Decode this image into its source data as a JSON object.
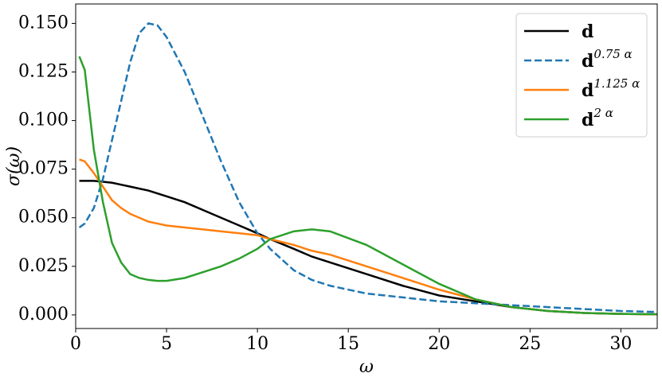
{
  "chart_data": {
    "type": "line",
    "xlabel": "ω",
    "ylabel": "σ(ω)",
    "x": [
      0.2,
      0.5,
      1,
      1.5,
      2,
      2.5,
      3,
      3.5,
      4,
      4.5,
      5,
      6,
      7,
      8,
      9,
      10,
      10.7,
      12,
      13,
      14,
      16,
      18,
      20,
      22,
      24,
      26,
      28,
      30,
      32
    ],
    "series": [
      {
        "name": "d",
        "color": "#000000",
        "dash": false,
        "values": [
          0.069,
          0.069,
          0.069,
          0.0685,
          0.068,
          0.067,
          0.066,
          0.065,
          0.064,
          0.0625,
          0.061,
          0.058,
          0.054,
          0.05,
          0.046,
          0.042,
          0.039,
          0.034,
          0.03,
          0.027,
          0.021,
          0.015,
          0.01,
          0.007,
          0.004,
          0.002,
          0.001,
          0.0005,
          0.0003
        ]
      },
      {
        "name": "d0.75 α",
        "color": "#1f77b4",
        "dash": true,
        "values": [
          0.045,
          0.047,
          0.055,
          0.07,
          0.09,
          0.11,
          0.13,
          0.145,
          0.15,
          0.149,
          0.143,
          0.125,
          0.102,
          0.079,
          0.058,
          0.042,
          0.034,
          0.023,
          0.018,
          0.015,
          0.011,
          0.009,
          0.007,
          0.006,
          0.005,
          0.004,
          0.003,
          0.002,
          0.0015
        ]
      },
      {
        "name": "d1.125 α",
        "color": "#ff7f0e",
        "dash": false,
        "values": [
          0.08,
          0.079,
          0.073,
          0.066,
          0.059,
          0.055,
          0.052,
          0.05,
          0.048,
          0.047,
          0.046,
          0.045,
          0.044,
          0.043,
          0.042,
          0.041,
          0.039,
          0.036,
          0.033,
          0.031,
          0.025,
          0.019,
          0.013,
          0.008,
          0.004,
          0.002,
          0.001,
          0.0005,
          0.0002
        ]
      },
      {
        "name": "d2 α",
        "color": "#2ca02c",
        "dash": false,
        "values": [
          0.133,
          0.126,
          0.085,
          0.058,
          0.037,
          0.027,
          0.021,
          0.019,
          0.018,
          0.0175,
          0.0175,
          0.019,
          0.022,
          0.025,
          0.029,
          0.034,
          0.039,
          0.043,
          0.044,
          0.043,
          0.036,
          0.026,
          0.016,
          0.008,
          0.004,
          0.002,
          0.001,
          0.0005,
          0.0003
        ]
      }
    ],
    "xlim": [
      0,
      32
    ],
    "ylim": [
      -0.007,
      0.16
    ],
    "xticks": [
      0,
      5,
      10,
      15,
      20,
      25,
      30
    ],
    "yticks": [
      {
        "value": 0,
        "label": "0.000"
      },
      {
        "value": 0.025,
        "label": "0.025"
      },
      {
        "value": 0.05,
        "label": "0.050"
      },
      {
        "value": 0.075,
        "label": "0.075"
      },
      {
        "value": 0.1,
        "label": "0.100"
      },
      {
        "value": 0.125,
        "label": "0.125"
      },
      {
        "value": 0.15,
        "label": "0.150"
      }
    ],
    "legend": "upper right",
    "grid": false
  }
}
